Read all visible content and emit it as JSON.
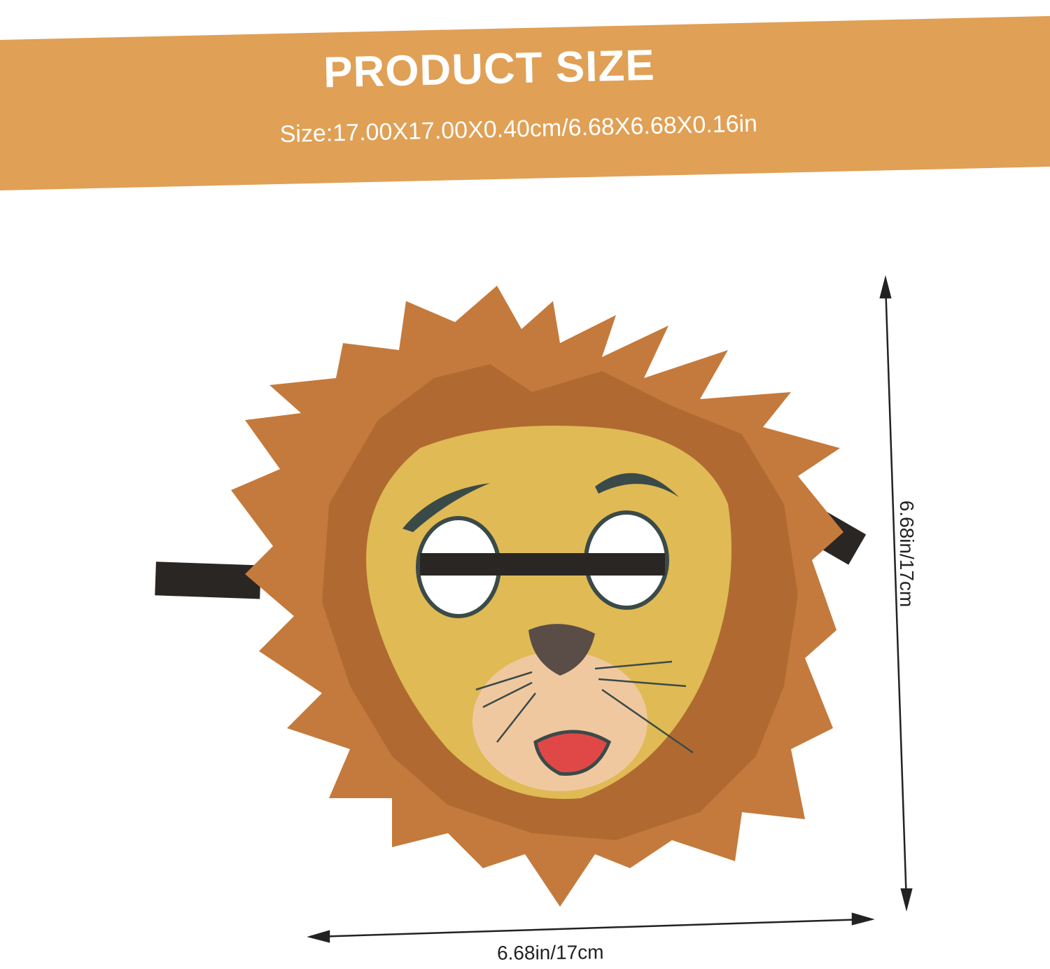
{
  "banner": {
    "title": "PRODUCT SIZE",
    "subtitle": "Size:17.00X17.00X0.40cm/6.68X6.68X0.16in",
    "color": "#E0A055"
  },
  "dimensions": {
    "width_label": "6.68in/17cm",
    "height_label": "6.68in/17cm"
  },
  "product": {
    "name_icon": "lion-mask-image",
    "colors": {
      "mane": "#C47A3C",
      "mane_dark": "#A8642C",
      "face": "#E0BA55",
      "muzzle": "#F0C8A0"
    }
  }
}
